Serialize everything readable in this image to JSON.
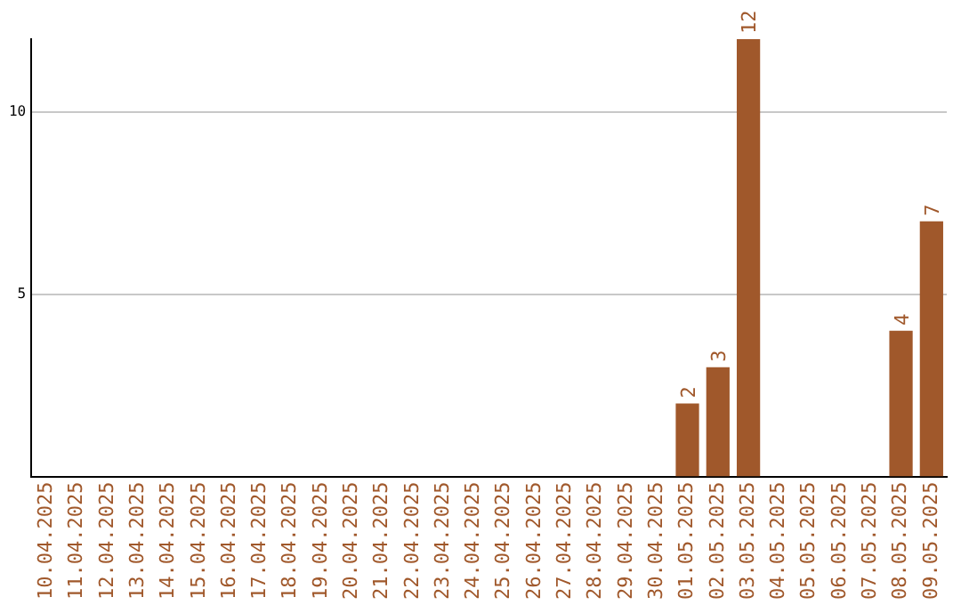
{
  "chart_data": {
    "type": "bar",
    "categories": [
      "10.04.2025",
      "11.04.2025",
      "12.04.2025",
      "13.04.2025",
      "14.04.2025",
      "15.04.2025",
      "16.04.2025",
      "17.04.2025",
      "18.04.2025",
      "19.04.2025",
      "20.04.2025",
      "21.04.2025",
      "22.04.2025",
      "23.04.2025",
      "24.04.2025",
      "25.04.2025",
      "26.04.2025",
      "27.04.2025",
      "28.04.2025",
      "29.04.2025",
      "30.04.2025",
      "01.05.2025",
      "02.05.2025",
      "03.05.2025",
      "04.05.2025",
      "05.05.2025",
      "06.05.2025",
      "07.05.2025",
      "08.05.2025",
      "09.05.2025"
    ],
    "values": [
      0,
      0,
      0,
      0,
      0,
      0,
      0,
      0,
      0,
      0,
      0,
      0,
      0,
      0,
      0,
      0,
      0,
      0,
      0,
      0,
      0,
      2,
      3,
      12,
      0,
      0,
      0,
      0,
      4,
      7
    ],
    "value_labels": [
      null,
      null,
      null,
      null,
      null,
      null,
      null,
      null,
      null,
      null,
      null,
      null,
      null,
      null,
      null,
      null,
      null,
      null,
      null,
      null,
      null,
      "2",
      "3",
      "12",
      null,
      null,
      null,
      null,
      "4",
      "7"
    ],
    "color": "#a0582b",
    "ylim": [
      0,
      12
    ],
    "yticks": [
      5,
      10
    ],
    "grid": "y",
    "legend": false
  }
}
